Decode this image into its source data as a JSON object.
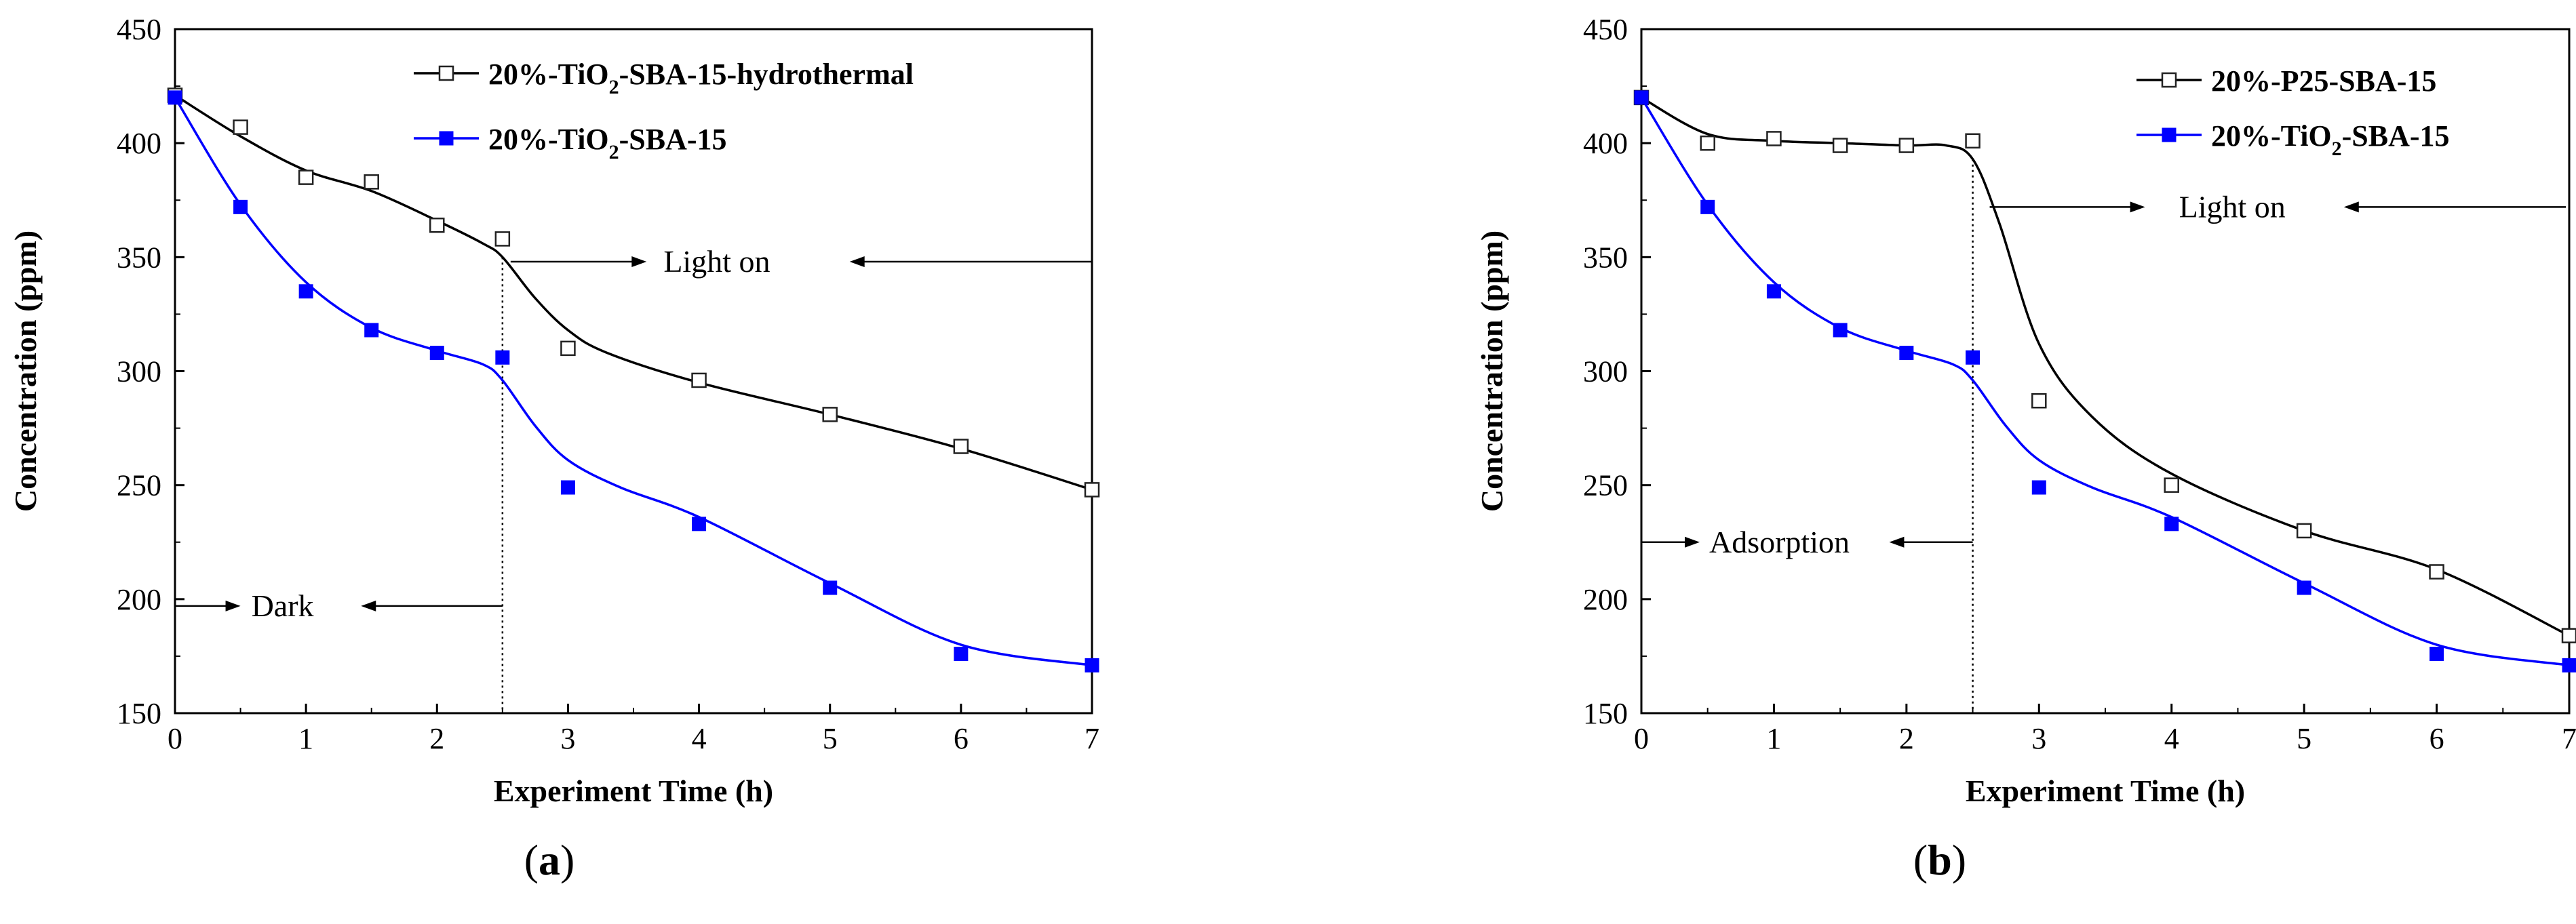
{
  "chart_data": [
    {
      "id": "a",
      "type": "scatter",
      "panel_label": "a",
      "xlabel": "Experiment Time (h)",
      "ylabel": "Concentration (ppm)",
      "xlim": [
        0,
        7
      ],
      "ylim": [
        150,
        450
      ],
      "xticks": [
        0,
        1,
        2,
        3,
        4,
        5,
        6,
        7
      ],
      "yticks": [
        150,
        200,
        250,
        300,
        350,
        400,
        450
      ],
      "grid": false,
      "legend_position": "top-right",
      "series": [
        {
          "name": "20%-TiO2-SBA-15-hydrothermal",
          "legend_main": "20%-TiO",
          "legend_sub": "2",
          "legend_rest": "-SBA-15-hydrothermal",
          "color": "#000000",
          "marker": "open-square",
          "x": [
            0,
            0.5,
            1,
            1.5,
            2,
            2.5,
            3,
            4,
            5,
            6,
            7
          ],
          "y": [
            421,
            407,
            385,
            383,
            364,
            358,
            310,
            296,
            281,
            267,
            248
          ],
          "fit_x": [
            0,
            0.5,
            1,
            1.5,
            2,
            2.35,
            2.5,
            2.75,
            3,
            3.3,
            4,
            5,
            6,
            7
          ],
          "fit_y": [
            421,
            403,
            388,
            379,
            366,
            356,
            350,
            332,
            318,
            308,
            295,
            281,
            266,
            248
          ]
        },
        {
          "name": "20%-TiO2-SBA-15",
          "legend_main": "20%-TiO",
          "legend_sub": "2",
          "legend_rest": "-SBA-15",
          "color": "#0000ff",
          "marker": "filled-square",
          "x": [
            0,
            0.5,
            1,
            1.5,
            2,
            2.5,
            3,
            4,
            5,
            6,
            7
          ],
          "y": [
            420,
            372,
            335,
            318,
            308,
            306,
            249,
            233,
            205,
            176,
            171
          ],
          "fit_x": [
            0,
            0.5,
            1,
            1.5,
            2,
            2.35,
            2.5,
            2.75,
            3,
            3.4,
            4,
            5,
            6,
            7
          ],
          "fit_y": [
            420,
            373,
            339,
            319,
            309,
            303,
            296,
            276,
            261,
            249,
            236,
            207,
            180,
            171
          ]
        }
      ],
      "annotations": {
        "light_on": "Light on",
        "dark": "Dark",
        "divider_x": 2.5
      }
    },
    {
      "id": "b",
      "type": "scatter",
      "panel_label": "b",
      "xlabel": "Experiment Time (h)",
      "ylabel": "Concentration (ppm)",
      "xlim": [
        0,
        7
      ],
      "ylim": [
        150,
        450
      ],
      "xticks": [
        0,
        1,
        2,
        3,
        4,
        5,
        6,
        7
      ],
      "yticks": [
        150,
        200,
        250,
        300,
        350,
        400,
        450
      ],
      "grid": false,
      "legend_position": "top-right",
      "series": [
        {
          "name": "20%-P25-SBA-15",
          "legend_main": "20%-P25-SBA-15",
          "legend_sub": "",
          "legend_rest": "",
          "color": "#000000",
          "marker": "open-square",
          "x": [
            0,
            0.5,
            1,
            1.5,
            2,
            2.5,
            3,
            4,
            5,
            6,
            7
          ],
          "y": [
            420,
            400,
            402,
            399,
            399,
            401,
            287,
            250,
            230,
            212,
            184
          ],
          "fit_x": [
            0,
            0.5,
            1,
            1.5,
            2,
            2.3,
            2.5,
            2.7,
            3,
            3.4,
            4,
            5,
            6,
            7
          ],
          "fit_y": [
            420,
            404,
            401,
            400,
            399,
            399,
            393,
            365,
            312,
            280,
            255,
            230,
            213,
            184
          ]
        },
        {
          "name": "20%-TiO2-SBA-15",
          "legend_main": "20%-TiO",
          "legend_sub": "2",
          "legend_rest": "-SBA-15",
          "color": "#0000ff",
          "marker": "filled-square",
          "x": [
            0,
            0.5,
            1,
            1.5,
            2,
            2.5,
            3,
            4,
            5,
            6,
            7
          ],
          "y": [
            420,
            372,
            335,
            318,
            308,
            306,
            249,
            233,
            205,
            176,
            171
          ],
          "fit_x": [
            0,
            0.5,
            1,
            1.5,
            2,
            2.35,
            2.5,
            2.75,
            3,
            3.4,
            4,
            5,
            6,
            7
          ],
          "fit_y": [
            420,
            373,
            339,
            319,
            309,
            303,
            296,
            276,
            261,
            249,
            236,
            207,
            180,
            171
          ]
        }
      ],
      "annotations": {
        "light_on": "Light on",
        "adsorption": "Adsorption",
        "divider_x": 2.5
      }
    }
  ]
}
